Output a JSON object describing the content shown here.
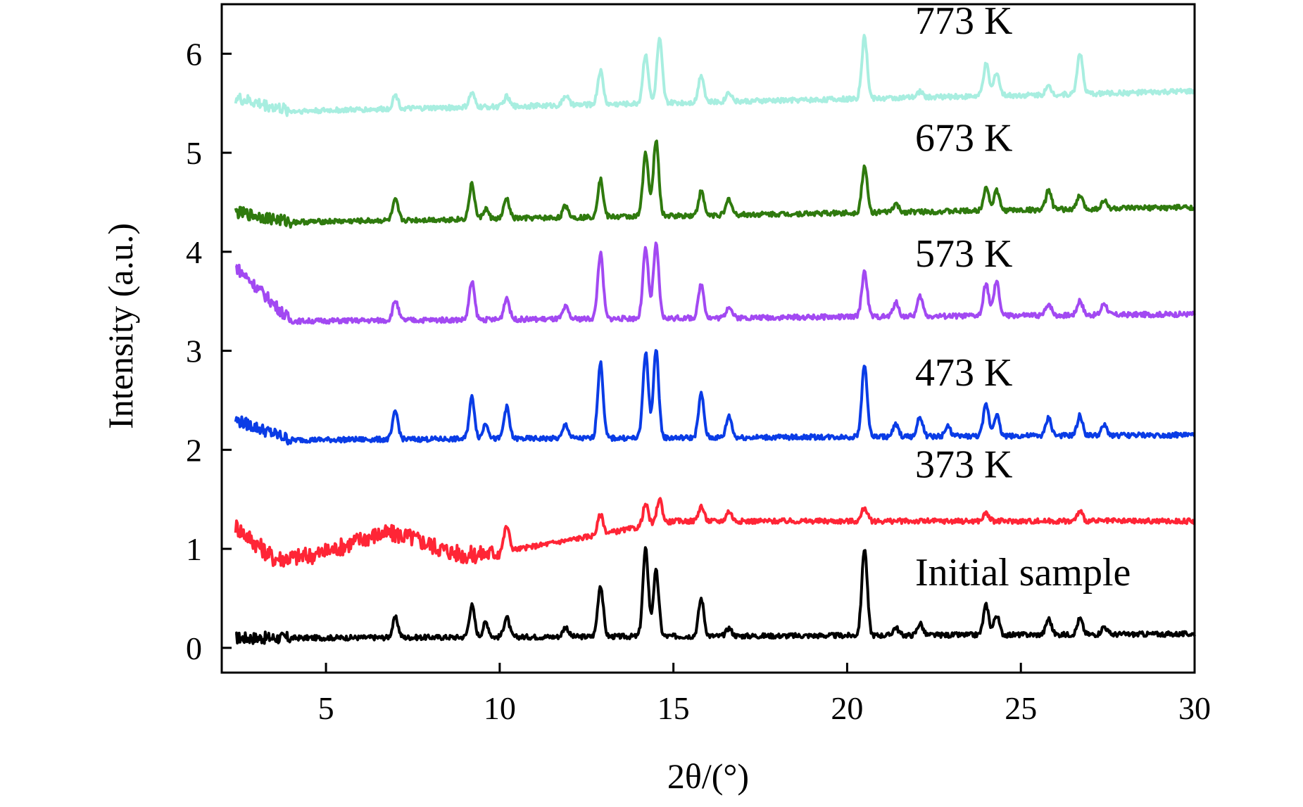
{
  "chart_data": {
    "type": "line",
    "title": "",
    "xlabel": "2θ/(°)",
    "ylabel": "Intensity (a.u.)",
    "xlim": [
      2,
      30
    ],
    "ylim": [
      -0.25,
      6.5
    ],
    "xticks": [
      5,
      10,
      15,
      20,
      25,
      30
    ],
    "yticks": [
      0,
      1,
      2,
      3,
      4,
      5,
      6
    ],
    "grid": false,
    "legend": "none (series labels printed beside curves)",
    "series": [
      {
        "name": "Initial sample",
        "color": "#000000",
        "baseline": 0.1,
        "start": 0.1,
        "end": 0.14,
        "peaks": [
          [
            7.0,
            0.2
          ],
          [
            9.2,
            0.32
          ],
          [
            9.6,
            0.15
          ],
          [
            10.2,
            0.2
          ],
          [
            11.9,
            0.1
          ],
          [
            12.9,
            0.52
          ],
          [
            14.2,
            0.88
          ],
          [
            14.5,
            0.66
          ],
          [
            15.8,
            0.38
          ],
          [
            16.6,
            0.08
          ],
          [
            20.5,
            0.88
          ],
          [
            21.4,
            0.08
          ],
          [
            22.1,
            0.12
          ],
          [
            24.0,
            0.3
          ],
          [
            24.3,
            0.2
          ],
          [
            25.8,
            0.16
          ],
          [
            26.7,
            0.16
          ],
          [
            27.4,
            0.08
          ]
        ],
        "ends": [
          0.1,
          0.14
        ]
      },
      {
        "name": "373 K",
        "color": "#ff2536",
        "baseline": 1.2,
        "start": 1.4,
        "end": 1.38,
        "peaks": [
          [
            10.2,
            0.25
          ],
          [
            12.9,
            0.2
          ],
          [
            14.2,
            0.22
          ],
          [
            14.6,
            0.25
          ],
          [
            15.8,
            0.15
          ],
          [
            16.6,
            0.1
          ],
          [
            20.5,
            0.14
          ],
          [
            24.0,
            0.08
          ],
          [
            26.7,
            0.1
          ]
        ],
        "ends": [
          1.4,
          1.38
        ]
      },
      {
        "name": "473 K",
        "color": "#0a3ce6",
        "baseline": 2.1,
        "start": 2.3,
        "end": 2.15,
        "peaks": [
          [
            7.0,
            0.28
          ],
          [
            9.2,
            0.42
          ],
          [
            9.6,
            0.16
          ],
          [
            10.2,
            0.32
          ],
          [
            11.9,
            0.14
          ],
          [
            12.9,
            0.76
          ],
          [
            14.2,
            0.86
          ],
          [
            14.5,
            0.88
          ],
          [
            15.8,
            0.44
          ],
          [
            16.6,
            0.22
          ],
          [
            20.5,
            0.72
          ],
          [
            21.4,
            0.12
          ],
          [
            22.1,
            0.2
          ],
          [
            22.9,
            0.1
          ],
          [
            24.0,
            0.32
          ],
          [
            24.3,
            0.22
          ],
          [
            25.8,
            0.18
          ],
          [
            26.7,
            0.2
          ],
          [
            27.4,
            0.1
          ]
        ],
        "ends": [
          2.3,
          2.15
        ]
      },
      {
        "name": "573 K",
        "color": "#a249f2",
        "baseline": 3.3,
        "start": 3.85,
        "end": 3.37,
        "peaks": [
          [
            7.0,
            0.2
          ],
          [
            9.2,
            0.38
          ],
          [
            10.2,
            0.22
          ],
          [
            11.9,
            0.12
          ],
          [
            12.9,
            0.66
          ],
          [
            14.2,
            0.7
          ],
          [
            14.5,
            0.74
          ],
          [
            15.8,
            0.34
          ],
          [
            16.6,
            0.12
          ],
          [
            20.5,
            0.46
          ],
          [
            21.4,
            0.14
          ],
          [
            22.1,
            0.2
          ],
          [
            24.0,
            0.32
          ],
          [
            24.3,
            0.34
          ],
          [
            25.8,
            0.12
          ],
          [
            26.7,
            0.15
          ],
          [
            27.4,
            0.12
          ]
        ],
        "ends": [
          3.85,
          3.37
        ]
      },
      {
        "name": "673 K",
        "color": "#2f7a0e",
        "baseline": 4.3,
        "start": 4.4,
        "end": 4.45,
        "peaks": [
          [
            7.0,
            0.2
          ],
          [
            9.2,
            0.35
          ],
          [
            9.6,
            0.1
          ],
          [
            10.2,
            0.2
          ],
          [
            11.9,
            0.12
          ],
          [
            12.9,
            0.38
          ],
          [
            14.2,
            0.65
          ],
          [
            14.5,
            0.76
          ],
          [
            15.8,
            0.24
          ],
          [
            16.6,
            0.16
          ],
          [
            20.5,
            0.46
          ],
          [
            21.4,
            0.08
          ],
          [
            24.0,
            0.24
          ],
          [
            24.3,
            0.2
          ],
          [
            25.8,
            0.2
          ],
          [
            26.7,
            0.14
          ],
          [
            27.4,
            0.08
          ]
        ],
        "ends": [
          4.4,
          4.45
        ]
      },
      {
        "name": "773 K",
        "color": "#a8eee0",
        "baseline": 5.42,
        "start": 5.55,
        "end": 5.62,
        "peaks": [
          [
            7.0,
            0.14
          ],
          [
            9.2,
            0.14
          ],
          [
            10.2,
            0.1
          ],
          [
            11.9,
            0.1
          ],
          [
            12.9,
            0.34
          ],
          [
            14.2,
            0.5
          ],
          [
            14.6,
            0.64
          ],
          [
            15.8,
            0.28
          ],
          [
            16.6,
            0.1
          ],
          [
            20.5,
            0.62
          ],
          [
            22.1,
            0.06
          ],
          [
            24.0,
            0.32
          ],
          [
            24.3,
            0.24
          ],
          [
            25.8,
            0.08
          ],
          [
            26.7,
            0.42
          ]
        ],
        "ends": [
          5.55,
          5.62
        ]
      }
    ]
  }
}
